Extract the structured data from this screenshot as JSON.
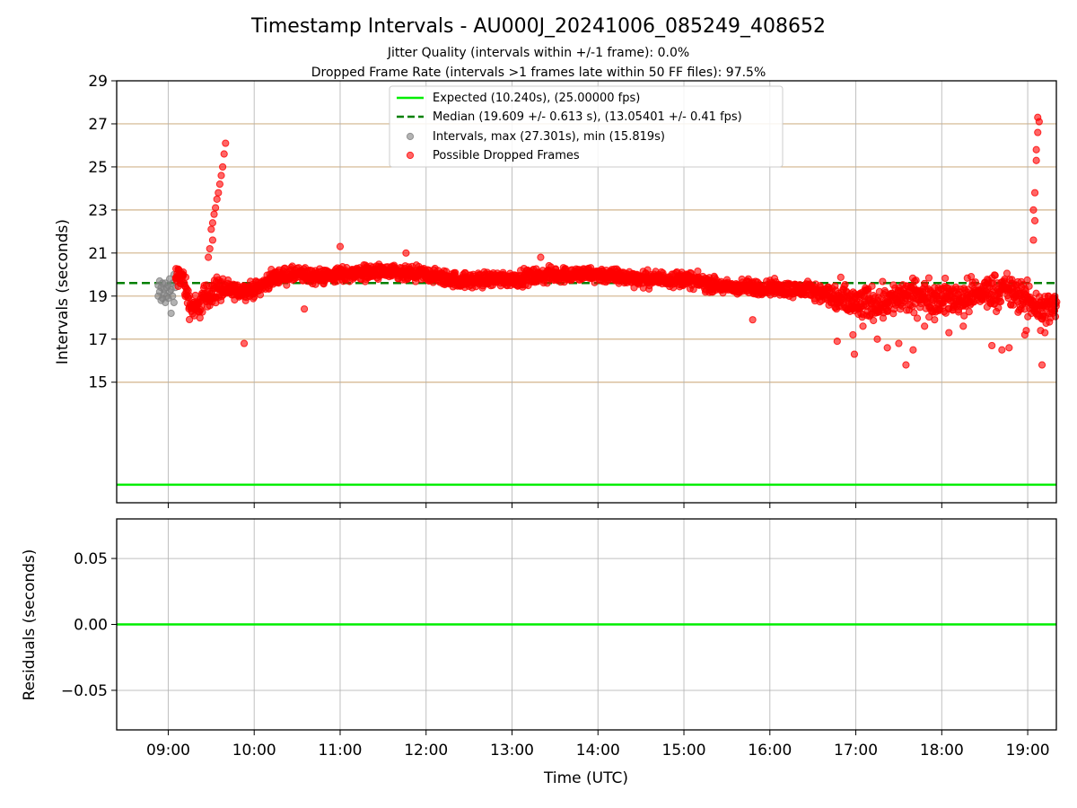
{
  "chart_data": [
    {
      "type": "scatter",
      "title": "Timestamp Intervals - AU000J_20241006_085249_408652",
      "subtitle_lines": [
        "Jitter Quality (intervals within +/-1 frame): 0.0%",
        "Dropped Frame Rate (intervals >1 frames late within 50 FF files): 97.5%"
      ],
      "xlabel": "",
      "ylabel": "Intervals (seconds)",
      "xlim": [
        "08:24",
        "19:20"
      ],
      "ylim": [
        9.4,
        29
      ],
      "xticks": [
        "09:00",
        "10:00",
        "11:00",
        "12:00",
        "13:00",
        "14:00",
        "15:00",
        "16:00",
        "17:00",
        "18:00",
        "19:00"
      ],
      "yticks": [
        15,
        17,
        19,
        21,
        23,
        25,
        27,
        29
      ],
      "grid": "on",
      "legend_placement": "top-center",
      "reference_lines": [
        {
          "name": "Expected (10.240s), (25.00000 fps)",
          "y": 10.24,
          "color": "#00ee00",
          "style": "solid"
        },
        {
          "name": "Median (19.609 +/- 0.613 s), (13.05401 +/- 0.41 fps)",
          "y": 19.609,
          "color": "#008000",
          "style": "dashed"
        }
      ],
      "series": [
        {
          "name": "Intervals, max (27.301s), min (15.819s)",
          "color": "#808080",
          "points": [
            [
              "08:53",
              19.5
            ],
            [
              "08:53",
              19.0
            ],
            [
              "08:54",
              19.7
            ],
            [
              "08:54",
              19.2
            ],
            [
              "08:55",
              18.8
            ],
            [
              "08:55",
              19.4
            ],
            [
              "08:56",
              19.6
            ],
            [
              "08:56",
              18.9
            ],
            [
              "08:57",
              19.3
            ],
            [
              "08:57",
              19.1
            ],
            [
              "08:58",
              19.6
            ],
            [
              "08:58",
              18.7
            ],
            [
              "08:59",
              19.4
            ],
            [
              "08:59",
              19.0
            ],
            [
              "09:00",
              19.5
            ],
            [
              "09:00",
              18.9
            ],
            [
              "09:01",
              19.2
            ],
            [
              "09:01",
              19.8
            ],
            [
              "09:02",
              18.2
            ],
            [
              "09:02",
              19.3
            ],
            [
              "09:03",
              19.6
            ],
            [
              "09:03",
              19.0
            ],
            [
              "09:04",
              20.0
            ],
            [
              "09:04",
              18.7
            ],
            [
              "09:05",
              19.4
            ]
          ]
        },
        {
          "name": "Possible Dropped Frames",
          "color": "#ff0000",
          "trend": [
            [
              "09:05",
              19.8
            ],
            [
              "09:10",
              19.9
            ],
            [
              "09:15",
              18.6
            ],
            [
              "09:20",
              18.4
            ],
            [
              "09:25",
              18.9
            ],
            [
              "09:35",
              19.4
            ],
            [
              "09:45",
              19.2
            ],
            [
              "10:00",
              19.3
            ],
            [
              "10:15",
              19.9
            ],
            [
              "10:30",
              20.0
            ],
            [
              "10:45",
              19.9
            ],
            [
              "11:00",
              20.0
            ],
            [
              "11:15",
              20.1
            ],
            [
              "11:30",
              20.1
            ],
            [
              "11:45",
              20.0
            ],
            [
              "12:00",
              20.0
            ],
            [
              "12:15",
              19.8
            ],
            [
              "12:30",
              19.7
            ],
            [
              "12:45",
              19.8
            ],
            [
              "13:00",
              19.8
            ],
            [
              "13:15",
              19.9
            ],
            [
              "13:30",
              20.0
            ],
            [
              "13:45",
              20.0
            ],
            [
              "14:00",
              20.0
            ],
            [
              "14:15",
              19.9
            ],
            [
              "14:30",
              19.8
            ],
            [
              "14:45",
              19.8
            ],
            [
              "15:00",
              19.8
            ],
            [
              "15:15",
              19.6
            ],
            [
              "15:30",
              19.4
            ],
            [
              "15:45",
              19.4
            ],
            [
              "16:00",
              19.4
            ],
            [
              "16:15",
              19.3
            ],
            [
              "16:30",
              19.3
            ],
            [
              "16:45",
              18.9
            ],
            [
              "17:00",
              18.6
            ],
            [
              "17:15",
              18.7
            ],
            [
              "17:30",
              18.9
            ],
            [
              "17:45",
              19.0
            ],
            [
              "18:00",
              18.9
            ],
            [
              "18:15",
              18.9
            ],
            [
              "18:30",
              19.2
            ],
            [
              "18:45",
              19.3
            ],
            [
              "19:00",
              18.8
            ],
            [
              "19:10",
              18.4
            ],
            [
              "19:20",
              18.5
            ]
          ],
          "points": [
            [
              "09:30",
              22.1
            ],
            [
              "09:31",
              22.4
            ],
            [
              "09:32",
              22.8
            ],
            [
              "09:33",
              23.1
            ],
            [
              "09:34",
              23.5
            ],
            [
              "09:35",
              23.8
            ],
            [
              "09:36",
              24.2
            ],
            [
              "09:37",
              24.6
            ],
            [
              "09:38",
              25.0
            ],
            [
              "09:39",
              25.6
            ],
            [
              "09:40",
              26.1
            ],
            [
              "09:28",
              20.8
            ],
            [
              "09:29",
              21.2
            ],
            [
              "09:31",
              21.6
            ],
            [
              "09:53",
              16.8
            ],
            [
              "10:35",
              18.4
            ],
            [
              "11:00",
              21.3
            ],
            [
              "11:46",
              21.0
            ],
            [
              "13:20",
              20.8
            ],
            [
              "15:48",
              17.9
            ],
            [
              "16:47",
              16.9
            ],
            [
              "16:58",
              17.2
            ],
            [
              "16:59",
              16.3
            ],
            [
              "17:05",
              17.6
            ],
            [
              "17:15",
              17.0
            ],
            [
              "17:22",
              16.6
            ],
            [
              "17:30",
              16.8
            ],
            [
              "17:35",
              15.8
            ],
            [
              "17:40",
              16.5
            ],
            [
              "17:48",
              17.6
            ],
            [
              "17:55",
              17.9
            ],
            [
              "18:05",
              17.3
            ],
            [
              "18:15",
              17.6
            ],
            [
              "18:35",
              16.7
            ],
            [
              "18:42",
              16.5
            ],
            [
              "18:47",
              16.6
            ],
            [
              "18:58",
              17.2
            ],
            [
              "18:59",
              17.4
            ],
            [
              "19:04",
              21.6
            ],
            [
              "19:04",
              23.0
            ],
            [
              "19:05",
              23.8
            ],
            [
              "19:05",
              22.5
            ],
            [
              "19:06",
              25.3
            ],
            [
              "19:06",
              25.8
            ],
            [
              "19:07",
              26.6
            ],
            [
              "19:07",
              27.3
            ],
            [
              "19:08",
              27.1
            ],
            [
              "19:09",
              17.4
            ],
            [
              "19:10",
              15.8
            ],
            [
              "19:12",
              17.3
            ]
          ]
        }
      ]
    },
    {
      "type": "line",
      "title": "",
      "xlabel": "Time (UTC)",
      "ylabel": "Residuals (seconds)",
      "xlim": [
        "08:24",
        "19:20"
      ],
      "ylim": [
        -0.08,
        0.08
      ],
      "xticks": [
        "09:00",
        "10:00",
        "11:00",
        "12:00",
        "13:00",
        "14:00",
        "15:00",
        "16:00",
        "17:00",
        "18:00",
        "19:00"
      ],
      "yticks": [
        0.05,
        0.0,
        -0.05
      ],
      "ytick_labels": [
        "0.05",
        "0.00",
        "−0.05"
      ],
      "grid": "on",
      "reference_lines": [
        {
          "y": 0.0,
          "color": "#00ee00",
          "style": "solid"
        }
      ]
    }
  ]
}
